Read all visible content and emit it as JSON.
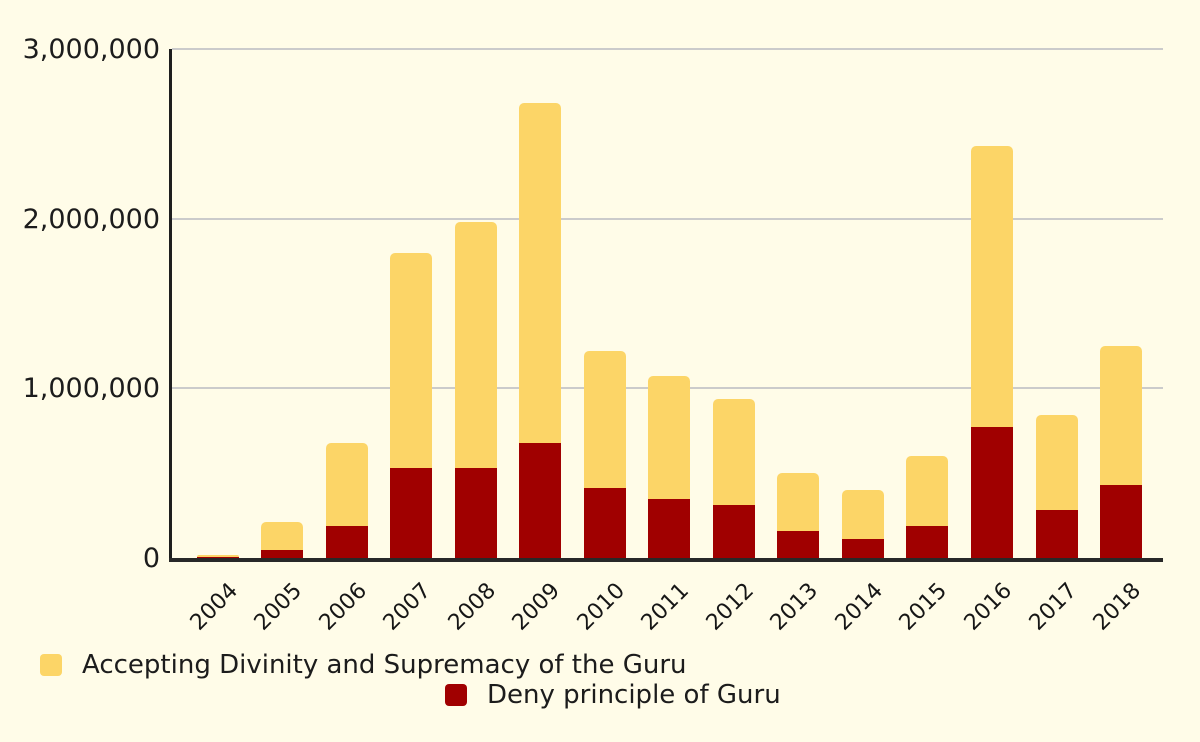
{
  "chart_data": {
    "type": "bar",
    "stacked": true,
    "title": "",
    "xlabel": "",
    "ylabel": "",
    "categories": [
      "2004",
      "2005",
      "2006",
      "2007",
      "2008",
      "2009",
      "2010",
      "2011",
      "2012",
      "2013",
      "2014",
      "2015",
      "2016",
      "2017",
      "2018"
    ],
    "series": [
      {
        "name": "Deny principle of Guru",
        "color": "#A00000",
        "values": [
          5000,
          50000,
          190000,
          530000,
          530000,
          680000,
          410000,
          350000,
          310000,
          160000,
          110000,
          190000,
          770000,
          280000,
          430000
        ]
      },
      {
        "name": "Accepting Divinity and Supremacy of the Guru",
        "color": "#FCD567",
        "values": [
          15000,
          160000,
          490000,
          1270000,
          1450000,
          2000000,
          810000,
          720000,
          630000,
          340000,
          290000,
          410000,
          1660000,
          560000,
          820000
        ]
      }
    ],
    "ylim": [
      0,
      3000000
    ],
    "y_ticks": [
      {
        "value": 0,
        "label": "0"
      },
      {
        "value": 1000000,
        "label": "1,000,000"
      },
      {
        "value": 2000000,
        "label": "2,000,000"
      },
      {
        "value": 3000000,
        "label": "3,000,000"
      }
    ],
    "grid": true,
    "grid_color": "#CBCBCB",
    "axis_color": "#282828",
    "background": "#FFFCE8",
    "legend_position": "bottom"
  }
}
